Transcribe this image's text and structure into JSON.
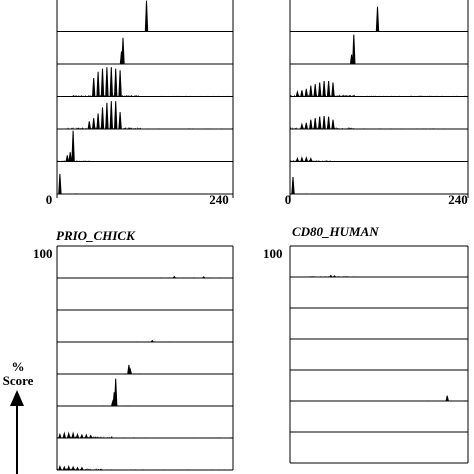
{
  "chart_data": [
    {
      "type": "line",
      "title": "",
      "x_ticks": [
        "0",
        "240"
      ],
      "xlim": [
        0,
        240
      ],
      "y_top_label": "",
      "rows": [
        {
          "peaks": [
            {
              "x": 122,
              "h": 1.0
            }
          ]
        },
        {
          "peaks": [
            {
              "x": 90,
              "h": 0.85
            },
            {
              "x": 88,
              "h": 0.4
            }
          ]
        },
        {
          "peaks": [
            {
              "x": 50,
              "h": 0.6
            },
            {
              "x": 56,
              "h": 0.8
            },
            {
              "x": 62,
              "h": 0.9
            },
            {
              "x": 68,
              "h": 0.95
            },
            {
              "x": 74,
              "h": 0.95
            },
            {
              "x": 80,
              "h": 0.9
            },
            {
              "x": 86,
              "h": 0.85
            }
          ],
          "noise": 0.05
        },
        {
          "peaks": [
            {
              "x": 44,
              "h": 0.25
            },
            {
              "x": 50,
              "h": 0.35
            },
            {
              "x": 56,
              "h": 0.5
            },
            {
              "x": 62,
              "h": 0.7
            },
            {
              "x": 68,
              "h": 0.85
            },
            {
              "x": 74,
              "h": 0.9
            },
            {
              "x": 80,
              "h": 0.9
            },
            {
              "x": 86,
              "h": 0.55
            }
          ],
          "noise": 0.05
        },
        {
          "peaks": [
            {
              "x": 22,
              "h": 1.0
            },
            {
              "x": 18,
              "h": 0.3
            },
            {
              "x": 14,
              "h": 0.2
            }
          ],
          "noise": 0.03
        },
        {
          "peaks": [
            {
              "x": 4,
              "h": 0.65
            }
          ],
          "noise": 0.02
        }
      ]
    },
    {
      "type": "line",
      "title": "",
      "x_ticks": [
        "0",
        "240"
      ],
      "xlim": [
        0,
        240
      ],
      "y_top_label": "",
      "rows": [
        {
          "peaks": [
            {
              "x": 118,
              "h": 0.8
            }
          ]
        },
        {
          "peaks": [
            {
              "x": 86,
              "h": 0.95
            },
            {
              "x": 83,
              "h": 0.3
            }
          ]
        },
        {
          "peaks": [
            {
              "x": 10,
              "h": 0.15
            },
            {
              "x": 16,
              "h": 0.2
            },
            {
              "x": 22,
              "h": 0.25
            },
            {
              "x": 28,
              "h": 0.35
            },
            {
              "x": 34,
              "h": 0.4
            },
            {
              "x": 40,
              "h": 0.45
            },
            {
              "x": 46,
              "h": 0.5
            },
            {
              "x": 52,
              "h": 0.5
            },
            {
              "x": 58,
              "h": 0.45
            }
          ],
          "noise": 0.06
        },
        {
          "peaks": [
            {
              "x": 16,
              "h": 0.15
            },
            {
              "x": 22,
              "h": 0.2
            },
            {
              "x": 28,
              "h": 0.3
            },
            {
              "x": 34,
              "h": 0.35
            },
            {
              "x": 40,
              "h": 0.4
            },
            {
              "x": 46,
              "h": 0.42
            },
            {
              "x": 52,
              "h": 0.4
            },
            {
              "x": 58,
              "h": 0.3
            }
          ],
          "noise": 0.05
        },
        {
          "peaks": [
            {
              "x": 10,
              "h": 0.1
            },
            {
              "x": 16,
              "h": 0.12
            },
            {
              "x": 22,
              "h": 0.12
            },
            {
              "x": 28,
              "h": 0.1
            }
          ],
          "noise": 0.04
        },
        {
          "peaks": [
            {
              "x": 4,
              "h": 0.55
            }
          ],
          "noise": 0.02
        }
      ]
    },
    {
      "type": "line",
      "title": "PRIO_CHICK",
      "y_top_label": "100",
      "xlim": [
        0,
        240
      ],
      "rows": [
        {
          "peaks": [
            {
              "x": 160,
              "h": 0.05
            },
            {
              "x": 200,
              "h": 0.04
            }
          ],
          "noise": 0.02
        },
        {
          "peaks": [],
          "noise": 0.02
        },
        {
          "peaks": [
            {
              "x": 130,
              "h": 0.05
            }
          ],
          "noise": 0.02
        },
        {
          "peaks": [
            {
              "x": 98,
              "h": 0.3
            },
            {
              "x": 100,
              "h": 0.15
            }
          ],
          "noise": 0.02
        },
        {
          "peaks": [
            {
              "x": 80,
              "h": 0.9
            },
            {
              "x": 78,
              "h": 0.45
            },
            {
              "x": 76,
              "h": 0.15
            }
          ],
          "noise": 0.02
        },
        {
          "peaks": [
            {
              "x": 4,
              "h": 0.12
            },
            {
              "x": 10,
              "h": 0.15
            },
            {
              "x": 16,
              "h": 0.15
            },
            {
              "x": 22,
              "h": 0.15
            },
            {
              "x": 28,
              "h": 0.12
            },
            {
              "x": 34,
              "h": 0.1
            },
            {
              "x": 40,
              "h": 0.1
            },
            {
              "x": 46,
              "h": 0.08
            }
          ],
          "noise": 0.05
        },
        {
          "peaks": [
            {
              "x": 4,
              "h": 0.12
            },
            {
              "x": 10,
              "h": 0.1
            },
            {
              "x": 16,
              "h": 0.12
            },
            {
              "x": 22,
              "h": 0.1
            },
            {
              "x": 28,
              "h": 0.08
            },
            {
              "x": 34,
              "h": 0.08
            }
          ],
          "noise": 0.05
        }
      ]
    },
    {
      "type": "line",
      "title": "CD80_HUMAN",
      "y_top_label": "100",
      "xlim": [
        0,
        240
      ],
      "rows": [
        {
          "peaks": [
            {
              "x": 55,
              "h": 0.05
            },
            {
              "x": 60,
              "h": 0.04
            }
          ],
          "noise": 0.03
        },
        {
          "peaks": [],
          "noise": 0.02
        },
        {
          "peaks": [],
          "noise": 0.02
        },
        {
          "peaks": [],
          "noise": 0.02
        },
        {
          "peaks": [
            {
              "x": 212,
              "h": 0.18
            }
          ],
          "noise": 0.02
        },
        {
          "peaks": [],
          "noise": 0.02
        },
        {
          "peaks": [],
          "noise": 0.02
        }
      ]
    }
  ],
  "y_axis": {
    "percent": "%",
    "score": "Score"
  }
}
